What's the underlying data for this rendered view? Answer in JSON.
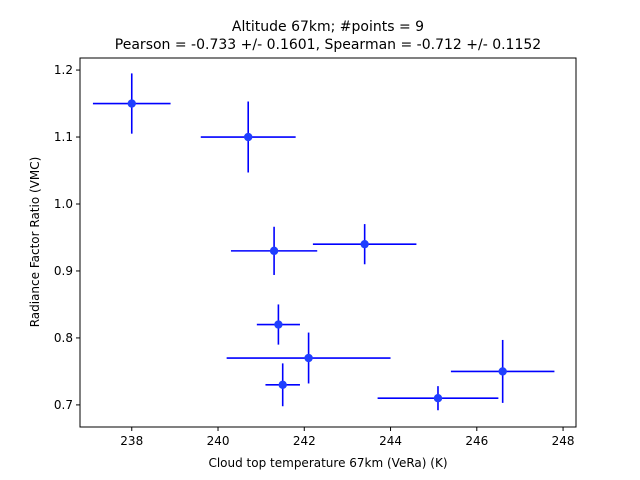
{
  "chart_data": {
    "type": "scatter",
    "title_line1": "Altitude 67km;  #points =  9",
    "title_line2": "Pearson = -0.733 +/-  0.1601, Spearman = -0.712 +/-  0.1152",
    "xlabel": "Cloud top temperature 67km (VeRa) (K)",
    "ylabel": "Radiance Factor Ratio (VMC)",
    "xlim": [
      236.8,
      248.3
    ],
    "ylim": [
      0.667,
      1.218
    ],
    "xticks": [
      238,
      240,
      242,
      244,
      246,
      248
    ],
    "yticks": [
      0.7,
      0.8,
      0.9,
      1.0,
      1.1,
      1.2
    ],
    "xtick_labels": [
      "238",
      "240",
      "242",
      "244",
      "246",
      "248"
    ],
    "ytick_labels": [
      "0.7",
      "0.8",
      "0.9",
      "1.0",
      "1.1",
      "1.2"
    ],
    "color": "#0000ff",
    "marker_color": "#1f3fff",
    "grid": false,
    "points": [
      {
        "x": 238.0,
        "y": 1.15,
        "xerr": 0.9,
        "yerr": 0.045
      },
      {
        "x": 240.7,
        "y": 1.1,
        "xerr": 1.1,
        "yerr": 0.053
      },
      {
        "x": 241.3,
        "y": 0.93,
        "xerr": 1.0,
        "yerr": 0.036
      },
      {
        "x": 243.4,
        "y": 0.94,
        "xerr": 1.2,
        "yerr": 0.03
      },
      {
        "x": 241.4,
        "y": 0.82,
        "xerr": 0.5,
        "yerr": 0.03
      },
      {
        "x": 242.1,
        "y": 0.77,
        "xerr": 1.9,
        "yerr": 0.038
      },
      {
        "x": 241.5,
        "y": 0.73,
        "xerr": 0.4,
        "yerr": 0.032
      },
      {
        "x": 245.1,
        "y": 0.71,
        "xerr": 1.4,
        "yerr": 0.018
      },
      {
        "x": 246.6,
        "y": 0.75,
        "xerr": 1.2,
        "yerr": 0.047
      }
    ]
  }
}
